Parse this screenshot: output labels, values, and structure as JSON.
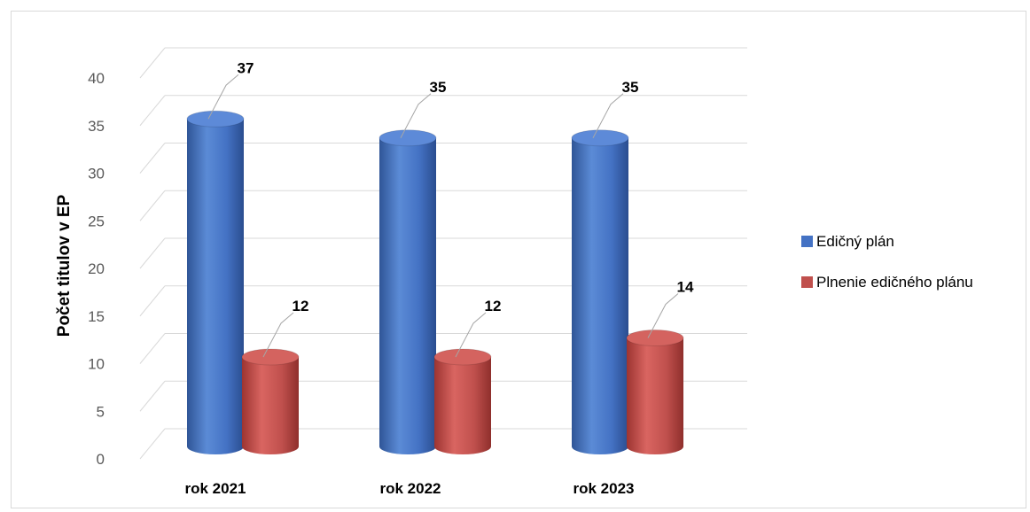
{
  "chart_data": {
    "type": "bar",
    "title": "",
    "xlabel": "",
    "ylabel": "Počet titulov v EP",
    "categories": [
      "rok 2021",
      "rok 2022",
      "rok 2023"
    ],
    "series": [
      {
        "name": "Edičný plán",
        "values": [
          37,
          35,
          35
        ],
        "color": "#4472C4"
      },
      {
        "name": "Plnenie edičného plánu",
        "values": [
          12,
          12,
          14
        ],
        "color": "#C0504D"
      }
    ],
    "ylim": [
      0,
      40
    ],
    "yticks": [
      0,
      5,
      10,
      15,
      20,
      25,
      30,
      35,
      40
    ],
    "grid": true,
    "legend": "right",
    "style": "3d-cylinder"
  }
}
